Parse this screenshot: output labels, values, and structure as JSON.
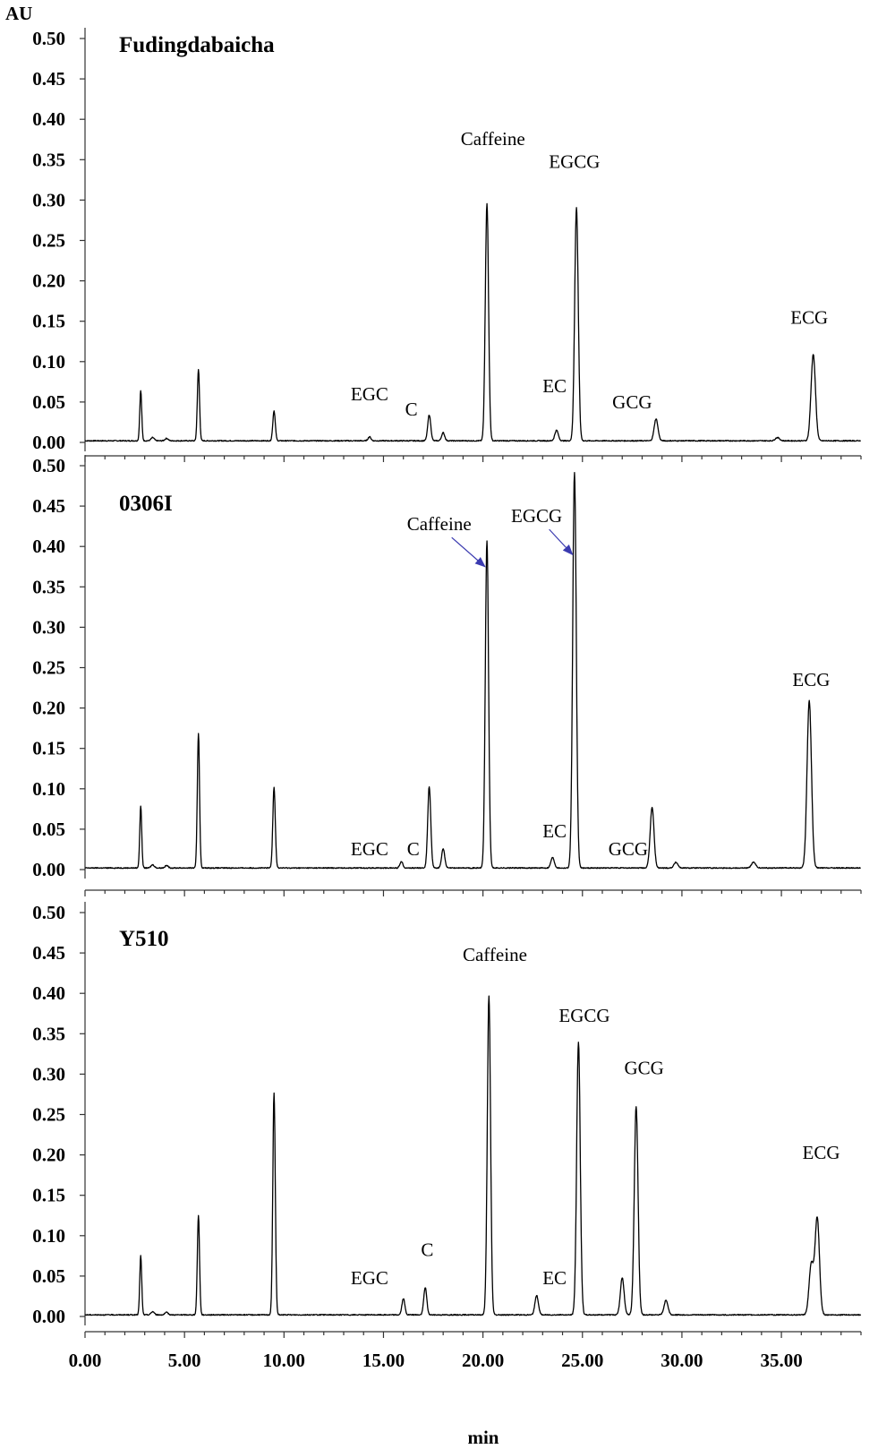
{
  "chart_data": {
    "type": "line",
    "ylabel": "AU",
    "xlabel": "min",
    "y_ticks": [
      "0.00",
      "0.05",
      "0.10",
      "0.15",
      "0.20",
      "0.25",
      "0.30",
      "0.35",
      "0.40",
      "0.45",
      "0.50"
    ],
    "x_ticks": [
      "0.00",
      "5.00",
      "10.00",
      "15.00",
      "20.00",
      "25.00",
      "30.00",
      "35.00"
    ],
    "xlim": [
      0,
      39
    ],
    "ylim": [
      0,
      0.5
    ],
    "colors": {
      "trace": "#000000",
      "arrow": "#3b3bb0",
      "axis": "#333333"
    },
    "panels": [
      {
        "title": "Fudingdabaicha",
        "peaks": [
          {
            "rt": 2.8,
            "h": 0.062
          },
          {
            "rt": 5.7,
            "h": 0.088
          },
          {
            "rt": 9.5,
            "h": 0.037
          },
          {
            "rt": 14.3,
            "h": 0.005
          },
          {
            "rt": 17.3,
            "h": 0.032
          },
          {
            "rt": 18.0,
            "h": 0.01
          },
          {
            "rt": 20.2,
            "h": 0.294
          },
          {
            "rt": 23.7,
            "h": 0.013
          },
          {
            "rt": 24.7,
            "h": 0.289
          },
          {
            "rt": 28.7,
            "h": 0.027
          },
          {
            "rt": 34.8,
            "h": 0.004
          },
          {
            "rt": 36.6,
            "h": 0.107
          }
        ],
        "labels": [
          {
            "text": "EGC",
            "rt": 14.3,
            "y": 0.052,
            "arrow": false
          },
          {
            "text": "C",
            "rt": 16.4,
            "y": 0.033,
            "arrow": false
          },
          {
            "text": "Caffeine",
            "rt": 20.5,
            "y": 0.368,
            "arrow": false
          },
          {
            "text": "EC",
            "rt": 23.6,
            "y": 0.062,
            "arrow": false
          },
          {
            "text": "EGCG",
            "rt": 24.6,
            "y": 0.34,
            "arrow": false
          },
          {
            "text": "GCG",
            "rt": 27.5,
            "y": 0.042,
            "arrow": false
          },
          {
            "text": "ECG",
            "rt": 36.4,
            "y": 0.147,
            "arrow": false
          }
        ]
      },
      {
        "title": "0306I",
        "peaks": [
          {
            "rt": 2.8,
            "h": 0.077
          },
          {
            "rt": 5.7,
            "h": 0.167
          },
          {
            "rt": 9.5,
            "h": 0.1
          },
          {
            "rt": 15.9,
            "h": 0.008
          },
          {
            "rt": 17.3,
            "h": 0.101
          },
          {
            "rt": 18.0,
            "h": 0.024
          },
          {
            "rt": 20.2,
            "h": 0.405
          },
          {
            "rt": 23.5,
            "h": 0.013
          },
          {
            "rt": 24.6,
            "h": 0.489
          },
          {
            "rt": 28.5,
            "h": 0.075
          },
          {
            "rt": 29.7,
            "h": 0.007
          },
          {
            "rt": 33.6,
            "h": 0.007
          },
          {
            "rt": 36.4,
            "h": 0.207
          }
        ],
        "labels": [
          {
            "text": "EGC",
            "rt": 14.3,
            "y": 0.018,
            "arrow": false
          },
          {
            "text": "C",
            "rt": 16.5,
            "y": 0.018,
            "arrow": false
          },
          {
            "text": "Caffeine",
            "rt": 17.8,
            "y": 0.42,
            "arrow": true,
            "to_rt": 20.1,
            "to_y": 0.375
          },
          {
            "text": "EGCG",
            "rt": 22.7,
            "y": 0.43,
            "arrow": true,
            "to_rt": 24.5,
            "to_y": 0.39
          },
          {
            "text": "EC",
            "rt": 23.6,
            "y": 0.04,
            "arrow": false
          },
          {
            "text": "GCG",
            "rt": 27.3,
            "y": 0.018,
            "arrow": false
          },
          {
            "text": "ECG",
            "rt": 36.5,
            "y": 0.227,
            "arrow": false
          }
        ]
      },
      {
        "title": "Y510",
        "peaks": [
          {
            "rt": 2.8,
            "h": 0.073
          },
          {
            "rt": 5.7,
            "h": 0.123
          },
          {
            "rt": 9.5,
            "h": 0.275
          },
          {
            "rt": 16.0,
            "h": 0.02
          },
          {
            "rt": 17.1,
            "h": 0.034
          },
          {
            "rt": 20.3,
            "h": 0.395
          },
          {
            "rt": 22.7,
            "h": 0.024
          },
          {
            "rt": 24.8,
            "h": 0.338
          },
          {
            "rt": 27.0,
            "h": 0.046
          },
          {
            "rt": 27.7,
            "h": 0.258
          },
          {
            "rt": 29.2,
            "h": 0.018
          },
          {
            "rt": 36.5,
            "h": 0.062
          },
          {
            "rt": 36.8,
            "h": 0.12
          }
        ],
        "labels": [
          {
            "text": "EGC",
            "rt": 14.3,
            "y": 0.04,
            "arrow": false
          },
          {
            "text": "C",
            "rt": 17.2,
            "y": 0.075,
            "arrow": false
          },
          {
            "text": "Caffeine",
            "rt": 20.6,
            "y": 0.44,
            "arrow": false
          },
          {
            "text": "EC",
            "rt": 23.6,
            "y": 0.04,
            "arrow": false
          },
          {
            "text": "EGCG",
            "rt": 25.1,
            "y": 0.365,
            "arrow": false
          },
          {
            "text": "GCG",
            "rt": 28.1,
            "y": 0.3,
            "arrow": false
          },
          {
            "text": "ECG",
            "rt": 37.0,
            "y": 0.195,
            "arrow": false
          }
        ]
      }
    ]
  }
}
